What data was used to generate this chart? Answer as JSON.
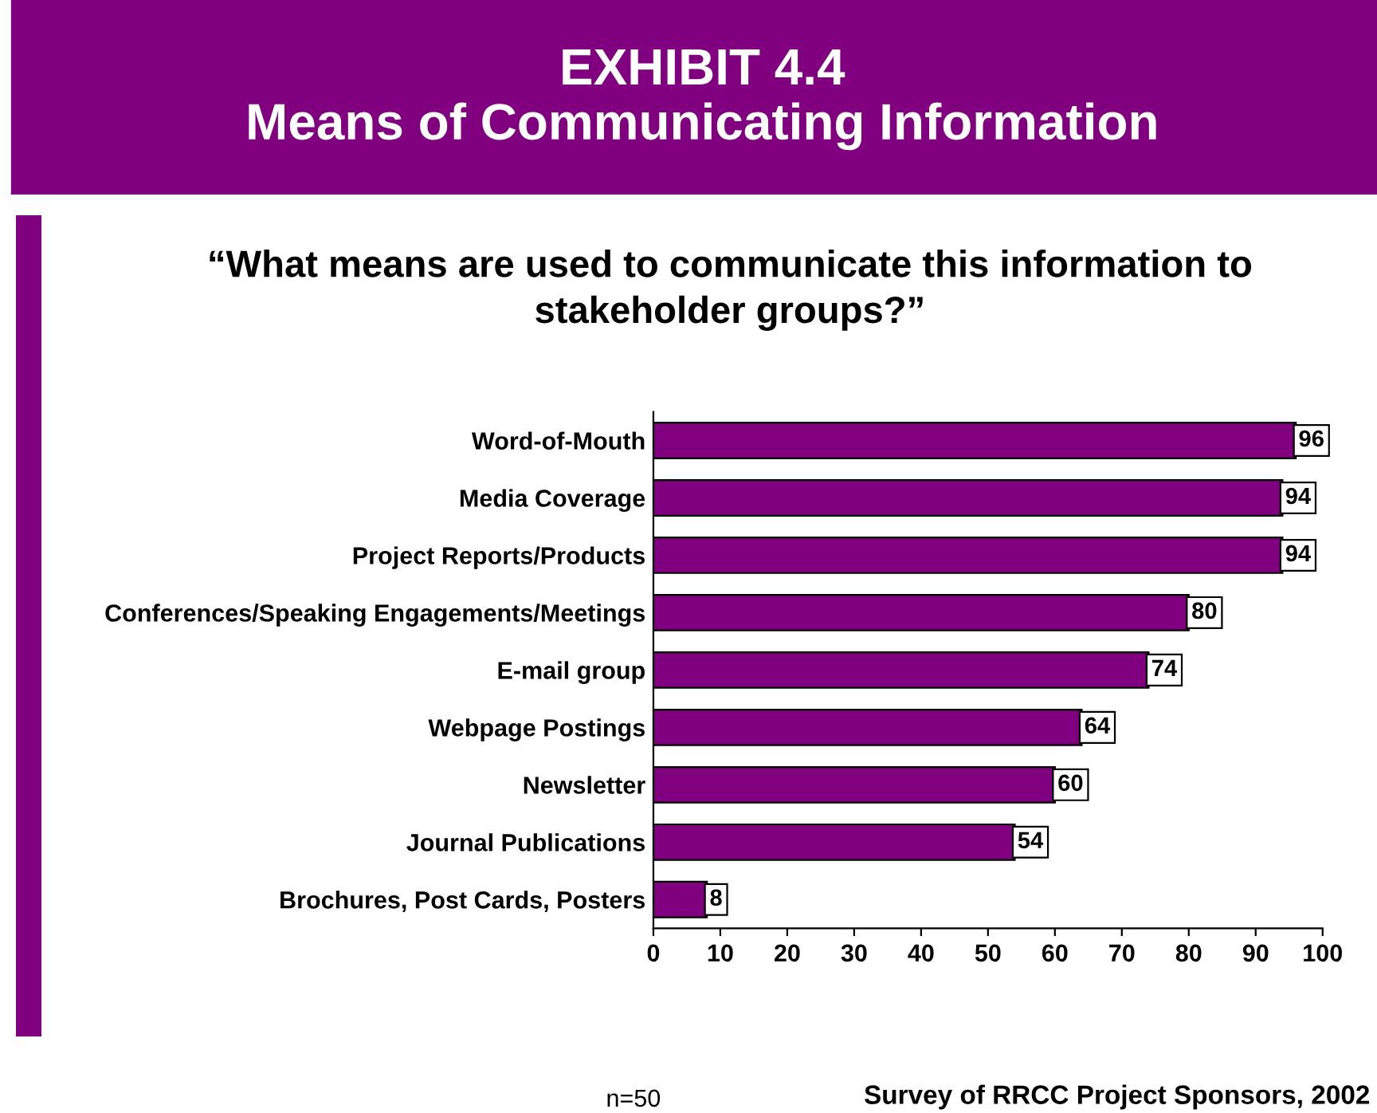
{
  "chart_data": {
    "type": "bar",
    "orientation": "horizontal",
    "title": "EXHIBIT 4.4\nMeans of Communicating Information",
    "subtitle": "“What means are used to communicate this information to\nstakeholder groups?”",
    "categories": [
      "Word-of-Mouth",
      "Media Coverage",
      "Project Reports/Products",
      "Conferences/Speaking Engagements/Meetings",
      "E-mail group",
      "Webpage Postings",
      "Newsletter",
      "Journal Publications",
      "Brochures, Post Cards, Posters"
    ],
    "values": [
      96,
      94,
      94,
      80,
      74,
      64,
      60,
      54,
      8
    ],
    "color": "#800080",
    "xlim": [
      0,
      100
    ],
    "xticks": [
      0,
      10,
      20,
      30,
      40,
      50,
      60,
      70,
      80,
      90,
      100
    ],
    "grid": false,
    "data_labels": true,
    "annotations": [
      "n=50",
      "Survey of RRCC Project Sponsors, 2002"
    ]
  }
}
